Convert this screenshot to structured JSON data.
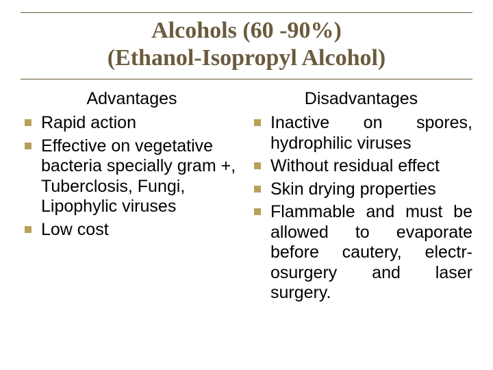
{
  "colors": {
    "title_text": "#6b5b3e",
    "rule": "#6b5b3e",
    "bullet": "#b8a05a",
    "body_text": "#000000",
    "background": "#ffffff"
  },
  "typography": {
    "title_font_family": "Times New Roman",
    "title_font_size_pt": 26,
    "title_font_weight": "bold",
    "body_font_family": "Arial",
    "body_font_size_pt": 19,
    "header_font_size_pt": 19,
    "line_height": 1.18
  },
  "title": {
    "line1": "Alcohols (60 -90%)",
    "line2": "(Ethanol-Isopropyl Alcohol)"
  },
  "left": {
    "header": "Advantages",
    "items": [
      "Rapid action",
      "Effective on vegetative bacteria specially gram +, Tuberclosis, Fungi, Lipophylic viruses",
      "Low cost"
    ]
  },
  "right": {
    "header": "Disadvantages",
    "items": [
      "Inactive on spores, hydrophilic viruses",
      "Without residual effect",
      "Skin drying properties",
      "Flammable and must be allowed to evaporate before cautery, electr-osurgery and laser surgery."
    ]
  }
}
